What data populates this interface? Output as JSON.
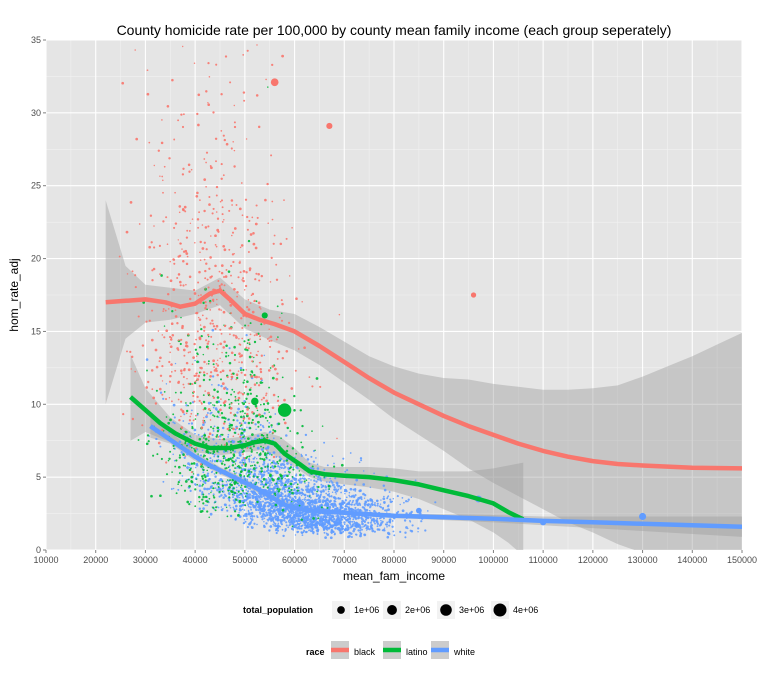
{
  "chart_data": {
    "type": "scatter",
    "title": "County homicide rate per 100,000 by county mean family income (each group seperately)",
    "xlabel": "mean_fam_income",
    "ylabel": "hom_rate_adj",
    "xlim": [
      10000,
      150000
    ],
    "ylim": [
      0,
      35
    ],
    "x_ticks": [
      10000,
      20000,
      30000,
      40000,
      50000,
      60000,
      70000,
      80000,
      90000,
      100000,
      110000,
      120000,
      130000,
      140000,
      150000
    ],
    "y_ticks": [
      0,
      5,
      10,
      15,
      20,
      25,
      30,
      35
    ],
    "grid": true,
    "legend_position": "bottom",
    "size_legend": {
      "title": "total_population",
      "entries": [
        {
          "label": "1e+06",
          "value": 1000000
        },
        {
          "label": "2e+06",
          "value": 2000000
        },
        {
          "label": "3e+06",
          "value": 3000000
        },
        {
          "label": "4e+06",
          "value": 4000000
        }
      ]
    },
    "color_legend": {
      "title": "race",
      "entries": [
        {
          "label": "black",
          "color": "#F8766D"
        },
        {
          "label": "latino",
          "color": "#00BA38"
        },
        {
          "label": "white",
          "color": "#619CFF"
        }
      ]
    },
    "series": [
      {
        "name": "black",
        "color": "#F8766D",
        "smooth": [
          [
            22000,
            17.0
          ],
          [
            26000,
            17.1
          ],
          [
            30000,
            17.2
          ],
          [
            34000,
            17.0
          ],
          [
            37000,
            16.7
          ],
          [
            40000,
            16.9
          ],
          [
            43000,
            17.6
          ],
          [
            45000,
            17.8
          ],
          [
            47000,
            17.2
          ],
          [
            50000,
            16.2
          ],
          [
            53000,
            15.8
          ],
          [
            56000,
            15.5
          ],
          [
            60000,
            15.0
          ],
          [
            65000,
            14.0
          ],
          [
            70000,
            12.9
          ],
          [
            75000,
            11.8
          ],
          [
            80000,
            10.8
          ],
          [
            85000,
            10.0
          ],
          [
            90000,
            9.2
          ],
          [
            95000,
            8.5
          ],
          [
            100000,
            7.9
          ],
          [
            105000,
            7.3
          ],
          [
            110000,
            6.8
          ],
          [
            115000,
            6.4
          ],
          [
            120000,
            6.1
          ],
          [
            125000,
            5.9
          ],
          [
            130000,
            5.8
          ],
          [
            140000,
            5.65
          ],
          [
            150000,
            5.6
          ]
        ],
        "ribbon": [
          [
            22000,
            10.0,
            24.0
          ],
          [
            26000,
            14.5,
            19.5
          ],
          [
            30000,
            15.6,
            18.2
          ],
          [
            35000,
            15.8,
            18.0
          ],
          [
            40000,
            16.2,
            17.8
          ],
          [
            45000,
            16.8,
            18.7
          ],
          [
            50000,
            15.2,
            17.2
          ],
          [
            55000,
            14.4,
            16.5
          ],
          [
            60000,
            13.7,
            16.2
          ],
          [
            65000,
            12.7,
            15.3
          ],
          [
            70000,
            11.5,
            14.3
          ],
          [
            75000,
            10.3,
            13.3
          ],
          [
            80000,
            9.0,
            12.6
          ],
          [
            85000,
            7.9,
            12.1
          ],
          [
            90000,
            6.8,
            11.8
          ],
          [
            95000,
            5.6,
            11.7
          ],
          [
            100000,
            4.6,
            11.4
          ],
          [
            105000,
            3.7,
            11.2
          ],
          [
            110000,
            2.8,
            11.0
          ],
          [
            115000,
            1.9,
            11.0
          ],
          [
            120000,
            1.2,
            11.1
          ],
          [
            125000,
            0.4,
            11.3
          ],
          [
            130000,
            -0.2,
            11.9
          ],
          [
            135000,
            -0.7,
            12.6
          ],
          [
            140000,
            -1.2,
            13.3
          ],
          [
            145000,
            -1.6,
            14.1
          ],
          [
            150000,
            -2.0,
            14.9
          ]
        ]
      },
      {
        "name": "latino",
        "color": "#00BA38",
        "smooth": [
          [
            27000,
            10.5
          ],
          [
            30000,
            9.6
          ],
          [
            33000,
            8.7
          ],
          [
            36000,
            8.0
          ],
          [
            40000,
            7.3
          ],
          [
            43000,
            7.0
          ],
          [
            47000,
            7.0
          ],
          [
            50000,
            7.2
          ],
          [
            52000,
            7.4
          ],
          [
            54000,
            7.5
          ],
          [
            56000,
            7.3
          ],
          [
            58000,
            6.6
          ],
          [
            61000,
            5.9
          ],
          [
            63000,
            5.4
          ],
          [
            66000,
            5.2
          ],
          [
            70000,
            5.1
          ],
          [
            75000,
            5.0
          ],
          [
            80000,
            4.8
          ],
          [
            85000,
            4.5
          ],
          [
            90000,
            4.1
          ],
          [
            95000,
            3.7
          ],
          [
            100000,
            3.2
          ],
          [
            103000,
            2.6
          ],
          [
            106000,
            2.1
          ]
        ],
        "ribbon": [
          [
            27000,
            7.5,
            13.4
          ],
          [
            30000,
            8.1,
            11.1
          ],
          [
            35000,
            7.4,
            9.1
          ],
          [
            40000,
            6.7,
            7.9
          ],
          [
            45000,
            6.5,
            7.6
          ],
          [
            50000,
            6.7,
            7.8
          ],
          [
            54000,
            6.9,
            8.1
          ],
          [
            57000,
            6.3,
            7.8
          ],
          [
            60000,
            5.7,
            7.0
          ],
          [
            63000,
            5.0,
            6.0
          ],
          [
            66000,
            4.7,
            5.7
          ],
          [
            70000,
            4.5,
            5.7
          ],
          [
            75000,
            4.3,
            5.7
          ],
          [
            80000,
            4.0,
            5.6
          ],
          [
            85000,
            3.5,
            5.4
          ],
          [
            90000,
            2.8,
            5.4
          ],
          [
            95000,
            2.1,
            5.4
          ],
          [
            100000,
            1.2,
            5.6
          ],
          [
            103000,
            0.5,
            5.8
          ],
          [
            106000,
            -0.4,
            6.0
          ]
        ]
      },
      {
        "name": "white",
        "color": "#619CFF",
        "smooth": [
          [
            31000,
            8.5
          ],
          [
            34000,
            7.8
          ],
          [
            37000,
            7.1
          ],
          [
            40000,
            6.4
          ],
          [
            43000,
            5.8
          ],
          [
            46000,
            5.3
          ],
          [
            49000,
            4.8
          ],
          [
            52000,
            4.3
          ],
          [
            55000,
            3.7
          ],
          [
            58000,
            3.1
          ],
          [
            61000,
            2.8
          ],
          [
            65000,
            2.65
          ],
          [
            70000,
            2.55
          ],
          [
            80000,
            2.35
          ],
          [
            90000,
            2.25
          ],
          [
            100000,
            2.15
          ],
          [
            110000,
            2.0
          ],
          [
            120000,
            1.9
          ],
          [
            130000,
            1.8
          ],
          [
            140000,
            1.7
          ],
          [
            150000,
            1.6
          ]
        ],
        "ribbon": [
          [
            31000,
            7.7,
            9.3
          ],
          [
            35000,
            7.3,
            8.1
          ],
          [
            40000,
            6.1,
            6.7
          ],
          [
            45000,
            5.2,
            5.7
          ],
          [
            50000,
            4.4,
            4.9
          ],
          [
            55000,
            3.5,
            3.9
          ],
          [
            60000,
            2.8,
            3.1
          ],
          [
            65000,
            2.5,
            2.8
          ],
          [
            70000,
            2.4,
            2.7
          ],
          [
            80000,
            2.2,
            2.5
          ],
          [
            90000,
            2.05,
            2.45
          ],
          [
            100000,
            1.9,
            2.4
          ],
          [
            110000,
            1.7,
            2.3
          ],
          [
            120000,
            1.5,
            2.3
          ],
          [
            130000,
            1.3,
            2.3
          ],
          [
            140000,
            1.1,
            2.3
          ],
          [
            150000,
            0.9,
            2.3
          ]
        ]
      }
    ],
    "notable_points": [
      {
        "race": "latino",
        "x": 58000,
        "y": 9.6,
        "population": 4300000
      },
      {
        "race": "black",
        "x": 56000,
        "y": 32.1,
        "population": 1000000
      },
      {
        "race": "black",
        "x": 67000,
        "y": 29.1,
        "population": 500000
      },
      {
        "race": "black",
        "x": 96000,
        "y": 17.5,
        "population": 300000
      },
      {
        "race": "latino",
        "x": 52000,
        "y": 10.2,
        "population": 900000
      },
      {
        "race": "latino",
        "x": 54000,
        "y": 16.1,
        "population": 500000
      },
      {
        "race": "white",
        "x": 130000,
        "y": 2.3,
        "population": 800000
      },
      {
        "race": "white",
        "x": 97000,
        "y": 3.5,
        "population": 700000
      },
      {
        "race": "white",
        "x": 110000,
        "y": 1.9,
        "population": 500000
      },
      {
        "race": "white",
        "x": 85000,
        "y": 2.7,
        "population": 400000
      }
    ]
  }
}
